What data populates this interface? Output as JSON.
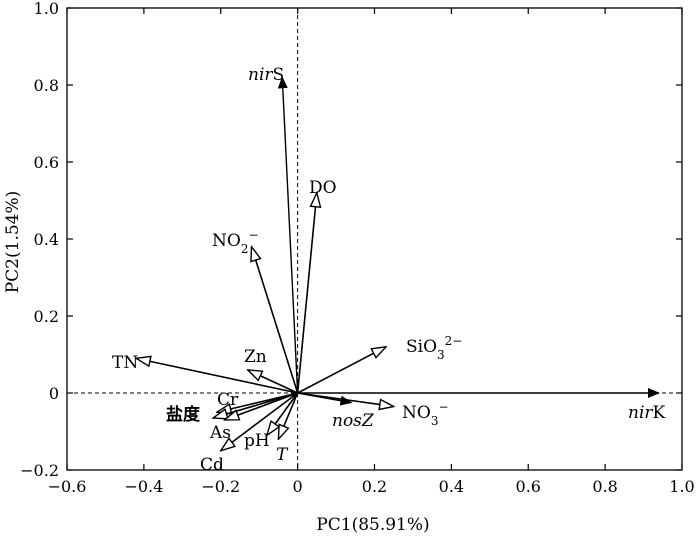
{
  "chart_data": {
    "type": "scatter",
    "subtype": "biplot-vectors",
    "xlabel": "PC1(85.91%)",
    "ylabel": "PC2(1.54%)",
    "xlim": [
      -0.6,
      1.0
    ],
    "ylim": [
      -0.2,
      1.0
    ],
    "xticks": [
      "−0.6",
      "−0.4",
      "−0.2",
      "0",
      "0.2",
      "0.4",
      "0.6",
      "0.8",
      "1.0"
    ],
    "yticks": [
      "−0.2",
      "0",
      "0.2",
      "0.4",
      "0.6",
      "0.8",
      "1.0"
    ],
    "grid": false,
    "reference_lines": "dashed lines at x=0 and y=0",
    "response_vectors": [
      {
        "label": "nirS",
        "label_italic": "nir",
        "label_rest": "S",
        "x": -0.04,
        "y": 0.82
      },
      {
        "label": "nirK",
        "label_italic": "nir",
        "label_rest": "K",
        "x": 0.94,
        "y": 0.0
      },
      {
        "label": "nosZ",
        "label_italic": "nosZ",
        "label_rest": "",
        "x": 0.14,
        "y": -0.025
      }
    ],
    "environment_vectors": [
      {
        "label": "DO",
        "base": "DO",
        "sup": "",
        "sub": "",
        "x": 0.05,
        "y": 0.52
      },
      {
        "label": "NO2−",
        "base": "NO",
        "sub": "2",
        "sup": "−",
        "x": -0.12,
        "y": 0.38
      },
      {
        "label": "SiO32−",
        "base": "SiO",
        "sub": "3",
        "sup": "2−",
        "x": 0.23,
        "y": 0.12
      },
      {
        "label": "TN",
        "base": "TN",
        "sub": "",
        "sup": "",
        "x": -0.42,
        "y": 0.09
      },
      {
        "label": "Zn",
        "base": "Zn",
        "sub": "",
        "sup": "",
        "x": -0.13,
        "y": 0.06
      },
      {
        "label": "Cr",
        "base": "Cr",
        "sub": "",
        "sup": "",
        "x": -0.21,
        "y": -0.05
      },
      {
        "label": "盐度",
        "base": "盐度",
        "sub": "",
        "sup": "",
        "x": -0.22,
        "y": -0.065
      },
      {
        "label": "As",
        "base": "As",
        "sub": "",
        "sup": "",
        "x": -0.19,
        "y": -0.07
      },
      {
        "label": "pH",
        "base": "pH",
        "sub": "",
        "sup": "",
        "x": -0.08,
        "y": -0.11
      },
      {
        "label": "T",
        "base": "T",
        "sub": "",
        "sup": "",
        "x": -0.05,
        "y": -0.12,
        "italic": true
      },
      {
        "label": "Cd",
        "base": "Cd",
        "sub": "",
        "sup": "",
        "x": -0.2,
        "y": -0.15
      },
      {
        "label": "NO3−",
        "base": "NO",
        "sub": "3",
        "sup": "−",
        "x": 0.25,
        "y": -0.035
      }
    ]
  }
}
